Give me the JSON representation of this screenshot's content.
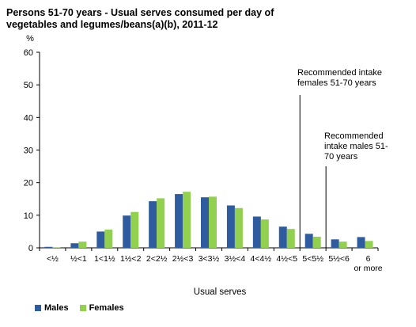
{
  "chart_data": {
    "type": "bar",
    "title_line1": "Persons 51-70 years - Usual serves consumed per day  of",
    "title_line2": "vegetables and legumes/beans(a)(b), 2011-12",
    "ylabel": "%",
    "xlabel": "Usual serves",
    "ylim": [
      0,
      60
    ],
    "yticks": [
      0,
      10,
      20,
      30,
      40,
      50,
      60
    ],
    "grid": false,
    "legend_position": "bottom-left",
    "categories": [
      "<½",
      "½<1",
      "1<1½",
      "1½<2",
      "2<2½",
      "2½<3",
      "3<3½",
      "3½<4",
      "4<4½",
      "4½<5",
      "5<5½",
      "5½<6",
      "6 or more"
    ],
    "series": [
      {
        "name": "Males",
        "color": "#2e5c9e",
        "values": [
          0.3,
          1.4,
          5.0,
          9.9,
          14.3,
          16.5,
          15.5,
          13.0,
          9.6,
          6.5,
          4.3,
          2.6,
          3.3
        ]
      },
      {
        "name": "Females",
        "color": "#92d050",
        "values": [
          0.1,
          1.9,
          5.6,
          11.0,
          15.2,
          17.2,
          15.7,
          12.2,
          8.7,
          5.8,
          3.4,
          1.9,
          2.1
        ]
      }
    ],
    "annotations": [
      {
        "text_lines": [
          "Recommended intake",
          "females 51-70 years"
        ],
        "x_value": 5
      },
      {
        "text_lines": [
          "Recommended",
          "intake males 51-",
          "70 years"
        ],
        "x_value": 5.5
      }
    ]
  }
}
